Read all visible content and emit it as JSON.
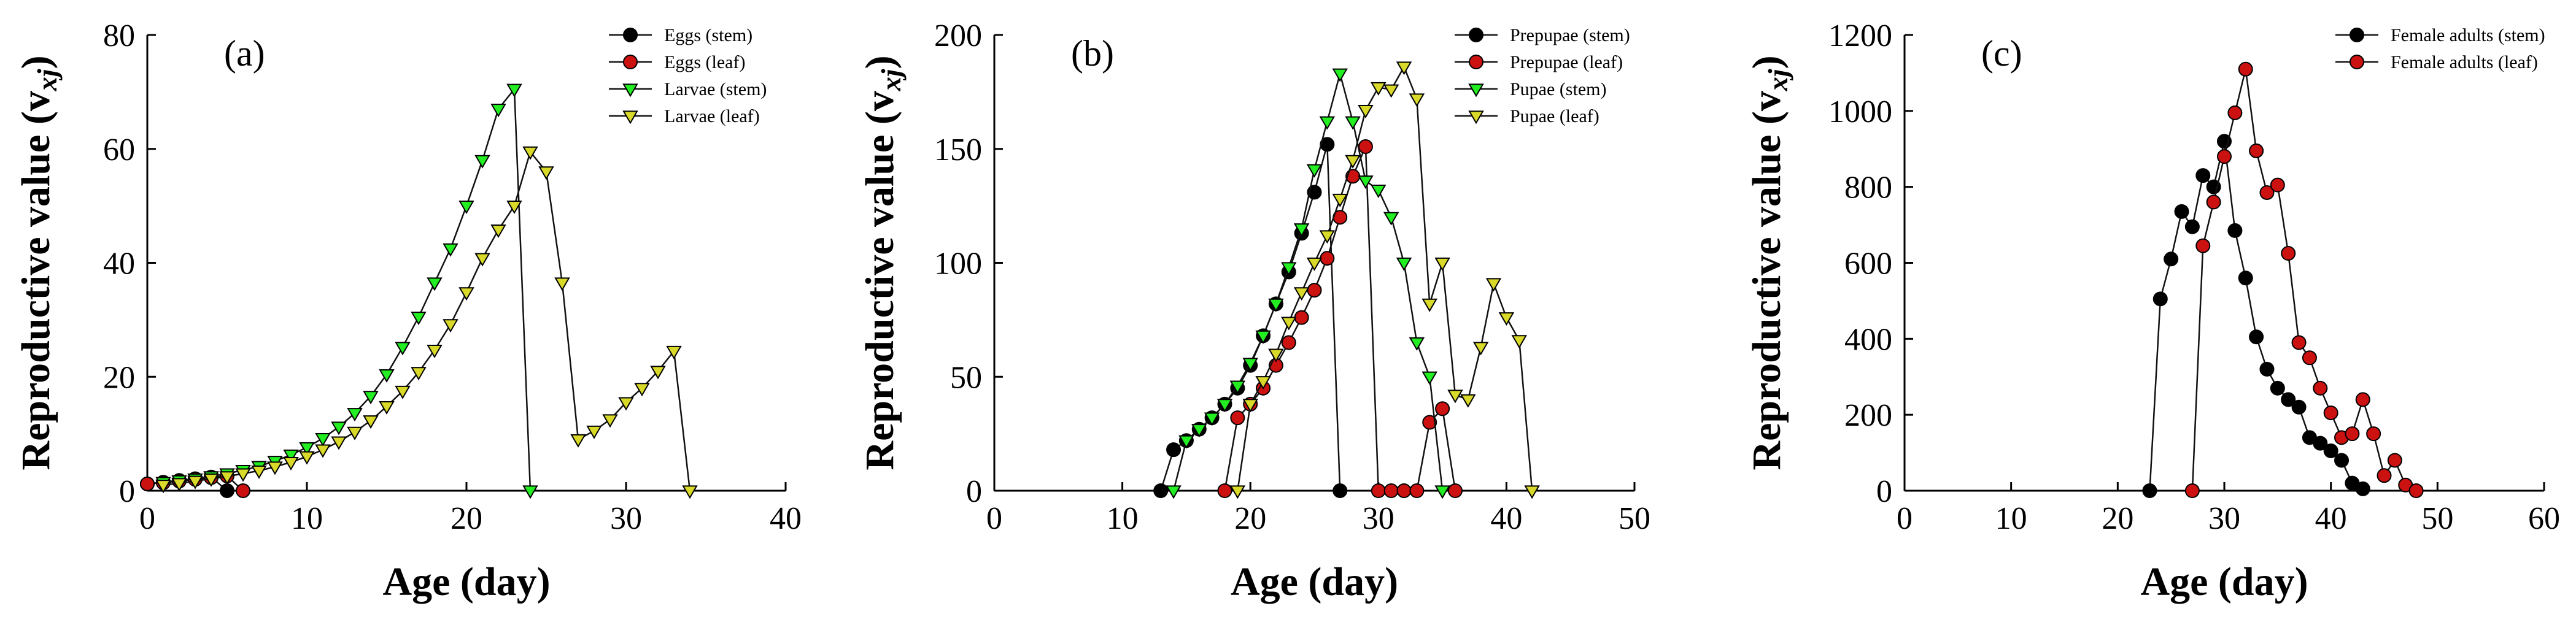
{
  "chart_data": [
    {
      "type": "line",
      "panel_label": "(a)",
      "xlabel": "Age  (day)",
      "ylabel": "Reproductive value (v",
      "ylabel_sub": "xj",
      "ylabel_close": ")",
      "xlim": [
        0,
        40
      ],
      "ylim": [
        0,
        80
      ],
      "xticks": [
        0,
        10,
        20,
        30,
        40
      ],
      "yticks": [
        0,
        20,
        40,
        60,
        80
      ],
      "legend_position": "top-right",
      "series": [
        {
          "name": "Eggs (stem)",
          "marker": "circle",
          "color": "#000000",
          "x": [
            0,
            1,
            2,
            3,
            4,
            5
          ],
          "y": [
            1.2,
            1.5,
            1.8,
            2.1,
            2.4,
            0
          ]
        },
        {
          "name": "Eggs (leaf)",
          "marker": "circle",
          "color": "#cc1111",
          "x": [
            0,
            1,
            2,
            3,
            4,
            5,
            6
          ],
          "y": [
            1.2,
            1.4,
            1.7,
            2.0,
            2.3,
            2.6,
            0
          ]
        },
        {
          "name": "Larvae (stem)",
          "marker": "triangle-down",
          "color": "#22ee22",
          "x": [
            1,
            2,
            3,
            4,
            5,
            6,
            7,
            8,
            9,
            10,
            11,
            12,
            13,
            14,
            15,
            16,
            17,
            18,
            19,
            20,
            21,
            22,
            23,
            24
          ],
          "y": [
            1.5,
            1.8,
            2.1,
            2.5,
            3.0,
            3.6,
            4.3,
            5.2,
            6.3,
            7.6,
            9.2,
            11.2,
            13.6,
            16.6,
            20.4,
            25.2,
            30.5,
            36.5,
            42.5,
            50.0,
            58.0,
            67.0,
            70.5,
            0
          ]
        },
        {
          "name": "Larvae (leaf)",
          "marker": "triangle-down",
          "color": "#d9d92a",
          "x": [
            1,
            2,
            3,
            4,
            5,
            6,
            7,
            8,
            9,
            10,
            11,
            12,
            13,
            14,
            15,
            16,
            17,
            18,
            19,
            20,
            21,
            22,
            23,
            24,
            25,
            26,
            27,
            28,
            29,
            30,
            31,
            32,
            33,
            34
          ],
          "y": [
            1.0,
            1.3,
            1.7,
            2.1,
            2.5,
            3.0,
            3.5,
            4.2,
            5.0,
            6.0,
            7.2,
            8.6,
            10.3,
            12.3,
            14.8,
            17.5,
            20.8,
            24.7,
            29.2,
            34.8,
            40.8,
            45.8,
            50.0,
            59.5,
            56.0,
            36.5,
            9.0,
            10.5,
            12.5,
            15.5,
            18.0,
            21.0,
            24.5,
            0
          ]
        }
      ]
    },
    {
      "type": "line",
      "panel_label": "(b)",
      "xlabel": "Age  (day)",
      "ylabel": "Reproductive value (v",
      "ylabel_sub": "xj",
      "ylabel_close": ")",
      "xlim": [
        0,
        50
      ],
      "ylim": [
        0,
        200
      ],
      "xticks": [
        0,
        10,
        20,
        30,
        40,
        50
      ],
      "yticks": [
        0,
        50,
        100,
        150,
        200
      ],
      "legend_position": "top-right",
      "series": [
        {
          "name": "Prepupae (stem)",
          "marker": "circle",
          "color": "#000000",
          "x": [
            13,
            14,
            15,
            16,
            17,
            18,
            19,
            20,
            21,
            22,
            23,
            24,
            25,
            26,
            27
          ],
          "y": [
            0,
            18,
            22,
            27,
            32,
            38,
            45,
            55,
            68,
            82,
            96,
            113,
            131,
            152,
            0
          ]
        },
        {
          "name": "Prepupae (leaf)",
          "marker": "circle",
          "color": "#cc1111",
          "x": [
            18,
            19,
            20,
            21,
            22,
            23,
            24,
            25,
            26,
            27,
            28,
            29,
            30,
            31,
            32,
            33,
            34,
            35,
            36
          ],
          "y": [
            0,
            32,
            38,
            45,
            55,
            65,
            76,
            88,
            102,
            120,
            138,
            151,
            0,
            0,
            0,
            0,
            30,
            36,
            0
          ]
        },
        {
          "name": "Pupae (stem)",
          "marker": "triangle-down",
          "color": "#22ee22",
          "x": [
            14,
            15,
            16,
            17,
            18,
            19,
            20,
            21,
            22,
            23,
            24,
            25,
            26,
            27,
            28,
            29,
            30,
            31,
            32,
            33,
            34,
            35
          ],
          "y": [
            0,
            22,
            27,
            32,
            38,
            46,
            56,
            68,
            82,
            98,
            115,
            141,
            162,
            183,
            162,
            136,
            132,
            120,
            100,
            65,
            50,
            0
          ]
        },
        {
          "name": "Pupae (leaf)",
          "marker": "triangle-down",
          "color": "#d9d92a",
          "x": [
            19,
            20,
            21,
            22,
            23,
            24,
            25,
            26,
            27,
            28,
            29,
            30,
            31,
            32,
            33,
            34,
            35,
            36,
            37,
            38,
            39,
            40,
            41,
            42
          ],
          "y": [
            0,
            38,
            48,
            60,
            74,
            87,
            100,
            112,
            128,
            145,
            167,
            177,
            176,
            186,
            172,
            82,
            100,
            42,
            40,
            63,
            91,
            76,
            66,
            0
          ]
        }
      ]
    },
    {
      "type": "line",
      "panel_label": "(c)",
      "xlabel": "Age  (day)",
      "ylabel": "Reproductive value (v",
      "ylabel_sub": "xj",
      "ylabel_close": ")",
      "xlim": [
        0,
        60
      ],
      "ylim": [
        0,
        1200
      ],
      "xticks": [
        0,
        10,
        20,
        30,
        40,
        50,
        60
      ],
      "yticks": [
        0,
        200,
        400,
        600,
        800,
        1000,
        1200
      ],
      "legend_position": "top-right",
      "series": [
        {
          "name": "Female adults (stem)",
          "marker": "circle",
          "color": "#000000",
          "x": [
            23,
            24,
            25,
            26,
            27,
            28,
            29,
            30,
            31,
            32,
            33,
            34,
            35,
            36,
            37,
            38,
            39,
            40,
            41,
            42,
            43
          ],
          "y": [
            0,
            505,
            610,
            735,
            695,
            830,
            800,
            920,
            685,
            560,
            405,
            320,
            270,
            240,
            220,
            140,
            125,
            105,
            80,
            20,
            5
          ]
        },
        {
          "name": "Female adults (leaf)",
          "marker": "circle",
          "color": "#cc1111",
          "x": [
            27,
            28,
            29,
            30,
            31,
            32,
            33,
            34,
            35,
            36,
            37,
            38,
            39,
            40,
            41,
            42,
            43,
            44,
            45,
            46,
            47,
            48
          ],
          "y": [
            0,
            645,
            760,
            880,
            995,
            1110,
            895,
            785,
            805,
            625,
            390,
            350,
            270,
            205,
            140,
            150,
            240,
            150,
            40,
            80,
            15,
            0
          ]
        }
      ]
    }
  ]
}
